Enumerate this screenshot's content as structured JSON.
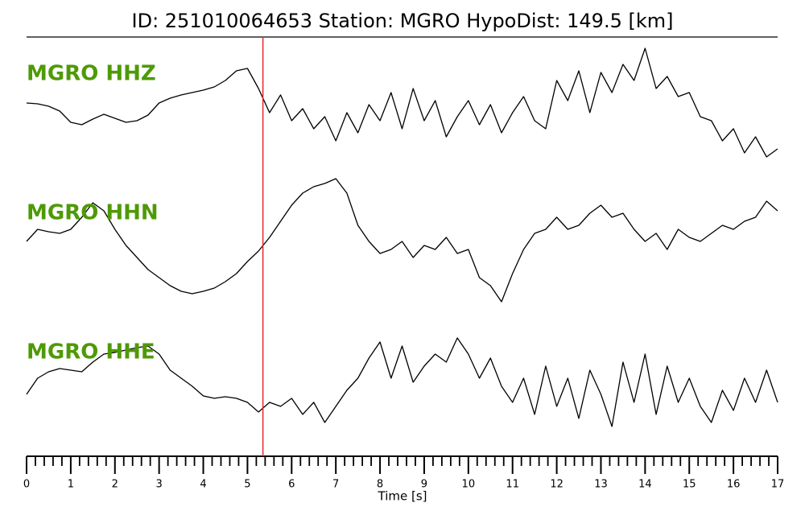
{
  "chart_data": {
    "type": "seismogram",
    "title": "ID: 251010064653   Station: MGRO   HypoDist:    149.5 [km]",
    "xlabel": "Time [s]",
    "xlim": [
      0,
      17
    ],
    "xticks": [
      0,
      1,
      2,
      3,
      4,
      5,
      6,
      7,
      8,
      9,
      10,
      11,
      12,
      13,
      14,
      15,
      16,
      17
    ],
    "xminorticks": [
      0.2,
      0.4,
      0.6,
      0.8,
      1.2,
      1.4,
      1.6,
      1.8,
      2.2,
      2.4,
      2.6,
      2.8,
      3.2,
      3.4,
      3.6,
      3.8,
      4.2,
      4.4,
      4.6,
      4.8,
      5.2,
      5.4,
      5.6,
      5.8,
      6.2,
      6.4,
      6.6,
      6.8,
      7.2,
      7.4,
      7.6,
      7.8,
      8.2,
      8.4,
      8.6,
      8.8,
      9.2,
      9.4,
      9.6,
      9.8,
      10.2,
      10.4,
      10.6,
      10.8,
      11.2,
      11.4,
      11.6,
      11.8,
      12.2,
      12.4,
      12.6,
      12.8,
      13.2,
      13.4,
      13.6,
      13.8,
      14.2,
      14.4,
      14.6,
      14.8,
      15.2,
      15.4,
      15.6,
      15.8,
      16.2,
      16.4,
      16.6,
      16.8
    ],
    "label_color": "#4e9a06",
    "vline": {
      "x": 5.35,
      "color": "#e8262b"
    },
    "x": [
      0,
      0.25,
      0.5,
      0.75,
      1,
      1.25,
      1.5,
      1.75,
      2,
      2.25,
      2.5,
      2.75,
      3,
      3.25,
      3.5,
      3.75,
      4,
      4.25,
      4.5,
      4.75,
      5,
      5.25,
      5.5,
      5.75,
      6,
      6.25,
      6.5,
      6.75,
      7,
      7.25,
      7.5,
      7.75,
      8,
      8.25,
      8.5,
      8.75,
      9,
      9.25,
      9.5,
      9.75,
      10,
      10.25,
      10.5,
      10.75,
      11,
      11.25,
      11.5,
      11.75,
      12,
      12.25,
      12.5,
      12.75,
      13,
      13.25,
      13.5,
      13.75,
      14,
      14.25,
      14.5,
      14.75,
      15,
      15.25,
      15.5,
      15.75,
      16,
      16.25,
      16.5,
      16.75,
      17
    ],
    "series": [
      {
        "name": "MGRO HHZ",
        "color": "#000000",
        "ylim": [
          -76,
          76
        ],
        "values": [
          3,
          2,
          -1,
          -7,
          -21,
          -24,
          -17,
          -11,
          -16,
          -21,
          -19,
          -12,
          3,
          9,
          13,
          16,
          19,
          23,
          31,
          43,
          46,
          21,
          -9,
          13,
          -19,
          -4,
          -29,
          -14,
          -44,
          -9,
          -34,
          1,
          -19,
          16,
          -29,
          21,
          -19,
          6,
          -39,
          -14,
          6,
          -24,
          1,
          -34,
          -9,
          11,
          -19,
          -29,
          31,
          6,
          43,
          -9,
          41,
          16,
          51,
          31,
          71,
          21,
          36,
          11,
          16,
          -14,
          -19,
          -44,
          -29,
          -59,
          -39,
          -64,
          -54
        ]
      },
      {
        "name": "MGRO HHN",
        "color": "#000000",
        "ylim": [
          -87,
          87
        ],
        "values": [
          5,
          20,
          17,
          15,
          20,
          35,
          53,
          43,
          20,
          0,
          -15,
          -30,
          -40,
          -50,
          -57,
          -60,
          -57,
          -53,
          -45,
          -35,
          -20,
          -7,
          10,
          30,
          50,
          65,
          73,
          77,
          83,
          65,
          25,
          5,
          -10,
          -5,
          5,
          -15,
          0,
          -5,
          10,
          -10,
          -5,
          -40,
          -50,
          -70,
          -35,
          -5,
          15,
          20,
          35,
          20,
          25,
          40,
          50,
          35,
          40,
          20,
          5,
          15,
          -5,
          20,
          10,
          5,
          15,
          25,
          20,
          30,
          35,
          55,
          43
        ]
      },
      {
        "name": "MGRO HHE",
        "color": "#000000",
        "ylim": [
          -70,
          70
        ],
        "values": [
          -12,
          8,
          16,
          20,
          18,
          16,
          28,
          38,
          40,
          43,
          46,
          48,
          38,
          18,
          8,
          -2,
          -14,
          -17,
          -15,
          -17,
          -22,
          -34,
          -22,
          -27,
          -17,
          -37,
          -22,
          -47,
          -27,
          -7,
          8,
          33,
          53,
          8,
          48,
          3,
          23,
          38,
          28,
          58,
          38,
          8,
          33,
          -2,
          -22,
          8,
          -37,
          23,
          -27,
          8,
          -42,
          18,
          -12,
          -52,
          28,
          -22,
          38,
          -37,
          23,
          -22,
          8,
          -27,
          -47,
          -7,
          -32,
          8,
          -22,
          18,
          -22
        ]
      }
    ]
  }
}
